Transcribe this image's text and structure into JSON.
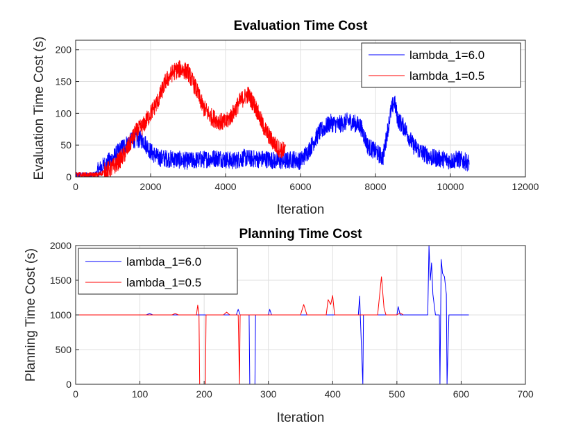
{
  "chart_data": [
    {
      "type": "line",
      "title": "Evaluation Time Cost",
      "xlabel": "Iteration",
      "ylabel": "Evaluation Time Cost (s)",
      "xlim": [
        0,
        12000
      ],
      "ylim": [
        0,
        215
      ],
      "xticks": [
        "0",
        "2000",
        "4000",
        "6000",
        "8000",
        "10000",
        "12000"
      ],
      "yticks": [
        "0",
        "50",
        "100",
        "150",
        "200"
      ],
      "grid": true,
      "legend_position": "top-right",
      "series": [
        {
          "name": "lambda_1=6.0",
          "color": "#0000ff",
          "noise": 14,
          "x": [
            0,
            500,
            700,
            1000,
            1300,
            1600,
            1800,
            2000,
            2200,
            2600,
            3000,
            3500,
            3800,
            4200,
            4500,
            4800,
            5100,
            5400,
            5600,
            5800,
            6000,
            6200,
            6500,
            6800,
            7000,
            7300,
            7600,
            7800,
            8000,
            8200,
            8400,
            8500,
            8600,
            8800,
            9000,
            9200,
            9500,
            9800,
            10000,
            10200,
            10500
          ],
          "y": [
            3,
            3,
            15,
            30,
            50,
            60,
            58,
            40,
            30,
            28,
            25,
            28,
            30,
            25,
            30,
            28,
            28,
            25,
            25,
            28,
            25,
            40,
            70,
            85,
            82,
            88,
            80,
            48,
            40,
            30,
            100,
            120,
            90,
            75,
            50,
            40,
            30,
            28,
            25,
            28,
            22
          ]
        },
        {
          "name": "lambda_1=0.5",
          "color": "#ff0000",
          "noise": 14,
          "x": [
            0,
            600,
            1000,
            1300,
            1600,
            1800,
            2000,
            2200,
            2400,
            2600,
            2800,
            3000,
            3200,
            3400,
            3600,
            3800,
            4000,
            4200,
            4400,
            4600,
            4800,
            5000,
            5200,
            5400,
            5600
          ],
          "y": [
            3,
            3,
            15,
            35,
            70,
            80,
            100,
            120,
            150,
            165,
            170,
            165,
            140,
            110,
            95,
            88,
            85,
            100,
            120,
            130,
            110,
            80,
            60,
            45,
            40
          ]
        }
      ]
    },
    {
      "type": "line",
      "title": "Planning Time Cost",
      "xlabel": "Iteration",
      "ylabel": "Planning Time Cost (s)",
      "xlim": [
        0,
        700
      ],
      "ylim": [
        0,
        2000
      ],
      "xticks": [
        "0",
        "100",
        "200",
        "300",
        "400",
        "500",
        "600",
        "700"
      ],
      "yticks": [
        "0",
        "500",
        "1000",
        "1500",
        "2000"
      ],
      "grid": true,
      "legend_position": "top-left",
      "series": [
        {
          "name": "lambda_1=6.0",
          "color": "#0000ff",
          "noise": 0,
          "x": [
            0,
            110,
            115,
            120,
            250,
            253,
            256,
            270,
            271,
            279,
            280,
            300,
            302,
            305,
            440,
            442,
            443,
            447,
            448,
            460,
            500,
            502,
            505,
            548,
            550,
            552,
            554,
            556,
            560,
            566,
            567,
            569,
            571,
            574,
            577,
            578,
            581,
            582,
            612
          ],
          "y": [
            1000,
            1000,
            1020,
            1000,
            1000,
            1080,
            1000,
            1000,
            0,
            0,
            1000,
            1000,
            1080,
            1000,
            1000,
            1270,
            1000,
            0,
            1000,
            1000,
            1000,
            1120,
            1000,
            1000,
            2000,
            1500,
            1750,
            1300,
            1000,
            1000,
            0,
            1800,
            1600,
            1550,
            1300,
            0,
            1000,
            1000,
            1000
          ]
        },
        {
          "name": "lambda_1=0.5",
          "color": "#ff0000",
          "noise": 0,
          "x": [
            0,
            150,
            155,
            160,
            188,
            190,
            192,
            193,
            202,
            203,
            230,
            235,
            240,
            253,
            255,
            256,
            257,
            350,
            355,
            360,
            390,
            393,
            397,
            400,
            403,
            470,
            476,
            480,
            483,
            500,
            505,
            510
          ],
          "y": [
            1000,
            1000,
            1020,
            1000,
            1000,
            1140,
            1000,
            0,
            0,
            1000,
            1000,
            1040,
            1000,
            1000,
            0,
            1000,
            1000,
            1000,
            1150,
            1000,
            1000,
            1220,
            1150,
            1280,
            1000,
            1000,
            1550,
            1100,
            1000,
            1000,
            1030,
            1000
          ]
        }
      ]
    }
  ]
}
